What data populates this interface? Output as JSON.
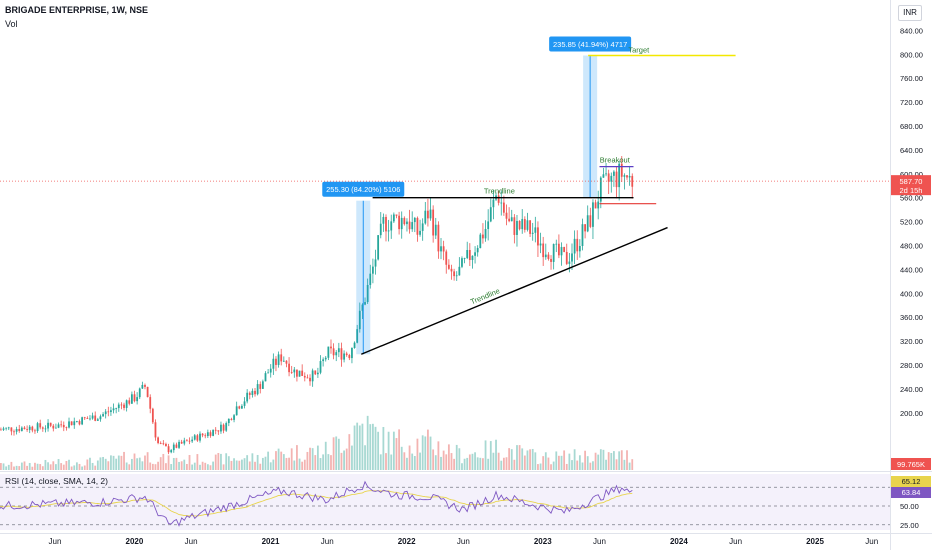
{
  "header": {
    "symbol_line": "BRIGADE ENTERPRISE, 1W, NSE",
    "volume_label": "Vol",
    "currency": "INR"
  },
  "price_badges": {
    "last_price": "587.70",
    "countdown": "2d 15h",
    "volume_value": "99.765K",
    "rsi_value": "65.12",
    "rsi_sma_value": "63.84"
  },
  "rsi": {
    "label": "RSI (14, close, SMA, 14, 2)",
    "levels": [
      75.0,
      50.0,
      25.0
    ],
    "level_labels": [
      "75.00",
      "50.00",
      "25.00"
    ]
  },
  "annotations": {
    "measure_1": "255.30 (84.20%) 5106",
    "measure_2": "235.85 (41.94%) 4717",
    "target": "Target",
    "breakout": "Breakout",
    "trendline_top": "Trendline",
    "trendline_bottom": "Trendline"
  },
  "colors": {
    "up": "#26a69a",
    "down": "#ef5350",
    "measure_box": "#2196f3",
    "target_line": "#f3e800",
    "rsi_line": "#7e57c2",
    "rsi_sma": "#e8d44d",
    "breakout_line": "#5c3fc5"
  },
  "chart_data": {
    "type": "candlestick",
    "title": "BRIGADE ENTERPRISE, 1W, NSE",
    "ylim": [
      160,
      900
    ],
    "y_ticks": [
      200,
      240,
      280,
      320,
      360,
      400,
      440,
      480,
      520,
      560,
      600,
      640,
      680,
      720,
      760,
      800,
      840,
      880
    ],
    "x_ticks": [
      "Jun",
      "2020",
      "Jun",
      "2021",
      "Jun",
      "2022",
      "Jun",
      "2023",
      "Jun",
      "2024",
      "Jun",
      "2025",
      "Jun"
    ],
    "x_tick_dates": [
      "2019-06",
      "2020-01",
      "2020-06",
      "2021-01",
      "2021-06",
      "2022-01",
      "2022-06",
      "2023-01",
      "2023-06",
      "2024-01",
      "2024-06",
      "2025-01",
      "2025-06"
    ],
    "price_path": [
      [
        "2019-01",
        172
      ],
      [
        "2019-06",
        178
      ],
      [
        "2019-10",
        195
      ],
      [
        "2020-01",
        225
      ],
      [
        "2020-02",
        245
      ],
      [
        "2020-03",
        150
      ],
      [
        "2020-04",
        138
      ],
      [
        "2020-06",
        155
      ],
      [
        "2020-09",
        178
      ],
      [
        "2020-10",
        210
      ],
      [
        "2020-12",
        245
      ],
      [
        "2021-01",
        275
      ],
      [
        "2021-02",
        295
      ],
      [
        "2021-03",
        270
      ],
      [
        "2021-05",
        260
      ],
      [
        "2021-06",
        300
      ],
      [
        "2021-08",
        300
      ],
      [
        "2021-09",
        370
      ],
      [
        "2021-10",
        440
      ],
      [
        "2021-11",
        520
      ],
      [
        "2022-01",
        525
      ],
      [
        "2022-02",
        500
      ],
      [
        "2022-03",
        540
      ],
      [
        "2022-04",
        470
      ],
      [
        "2022-05",
        420
      ],
      [
        "2022-06",
        445
      ],
      [
        "2022-08",
        510
      ],
      [
        "2022-09",
        570
      ],
      [
        "2022-10",
        515
      ],
      [
        "2022-12",
        505
      ],
      [
        "2023-01",
        480
      ],
      [
        "2023-03",
        455
      ],
      [
        "2023-05",
        515
      ],
      [
        "2023-06",
        570
      ],
      [
        "2023-07",
        590
      ],
      [
        "2023-08",
        600
      ],
      [
        "2023-09",
        587.7
      ]
    ],
    "volume_path": [
      [
        "2019-01",
        0.1
      ],
      [
        "2019-10",
        0.18
      ],
      [
        "2020-02",
        0.3
      ],
      [
        "2020-04",
        0.2
      ],
      [
        "2020-12",
        0.25
      ],
      [
        "2021-02",
        0.35
      ],
      [
        "2021-06",
        0.4
      ],
      [
        "2021-09",
        0.95
      ],
      [
        "2021-11",
        0.6
      ],
      [
        "2022-03",
        0.55
      ],
      [
        "2022-06",
        0.3
      ],
      [
        "2022-09",
        0.45
      ],
      [
        "2023-01",
        0.25
      ],
      [
        "2023-05",
        0.3
      ],
      [
        "2023-09",
        0.3
      ]
    ],
    "rsi_path": [
      [
        "2019-01",
        50
      ],
      [
        "2019-10",
        55
      ],
      [
        "2020-02",
        62
      ],
      [
        "2020-04",
        25
      ],
      [
        "2020-06",
        35
      ],
      [
        "2020-12",
        62
      ],
      [
        "2021-02",
        70
      ],
      [
        "2021-06",
        58
      ],
      [
        "2021-09",
        78
      ],
      [
        "2021-12",
        65
      ],
      [
        "2022-03",
        62
      ],
      [
        "2022-06",
        45
      ],
      [
        "2022-09",
        65
      ],
      [
        "2022-12",
        52
      ],
      [
        "2023-03",
        42
      ],
      [
        "2023-06",
        62
      ],
      [
        "2023-08",
        75
      ],
      [
        "2023-09",
        65.12
      ]
    ],
    "trendlines": {
      "resistance": [
        [
          "2021-10",
          560
        ],
        [
          "2023-09",
          560
        ]
      ],
      "support": [
        [
          "2021-09",
          298
        ],
        [
          "2023-12",
          510
        ]
      ],
      "breakout_level": [
        [
          "2023-06",
          612
        ],
        [
          "2023-09",
          612
        ]
      ],
      "stop_level": [
        [
          "2023-06",
          550
        ],
        [
          "2023-11",
          550
        ]
      ],
      "target_level": [
        [
          "2023-05",
          798
        ],
        [
          "2024-06",
          798
        ]
      ]
    },
    "measures": [
      {
        "from": [
          "2021-09",
          298
        ],
        "to": [
          "2021-09",
          555
        ],
        "label": "255.30 (84.20%) 5106"
      },
      {
        "from": [
          "2023-05",
          560
        ],
        "to": [
          "2023-05",
          798
        ],
        "label": "235.85 (41.94%) 4717"
      }
    ]
  }
}
